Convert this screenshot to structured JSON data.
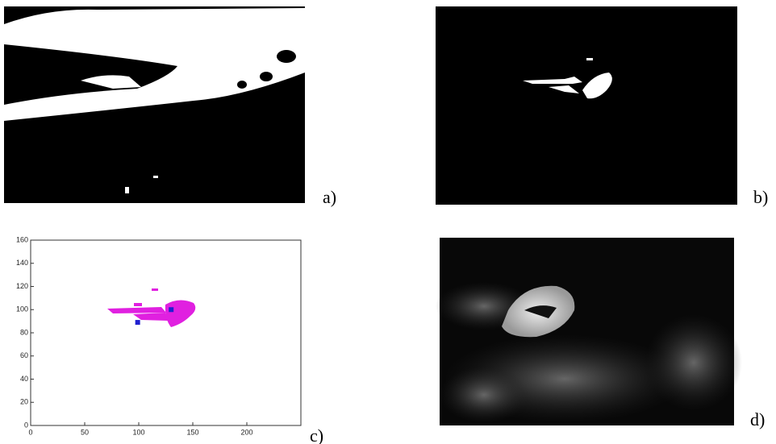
{
  "figure": {
    "labels": [
      "a)",
      "b)",
      "c)",
      "d)"
    ]
  },
  "chart_data": {
    "type": "scatter",
    "x": [
      99,
      130
    ],
    "values": [
      89,
      100
    ],
    "color": "#2020d0",
    "xlim": [
      0,
      250
    ],
    "ylim": [
      0,
      160
    ],
    "xticks": [
      0,
      50,
      100,
      150,
      200
    ],
    "yticks": [
      0,
      20,
      40,
      60,
      80,
      100,
      120,
      140,
      160
    ]
  }
}
